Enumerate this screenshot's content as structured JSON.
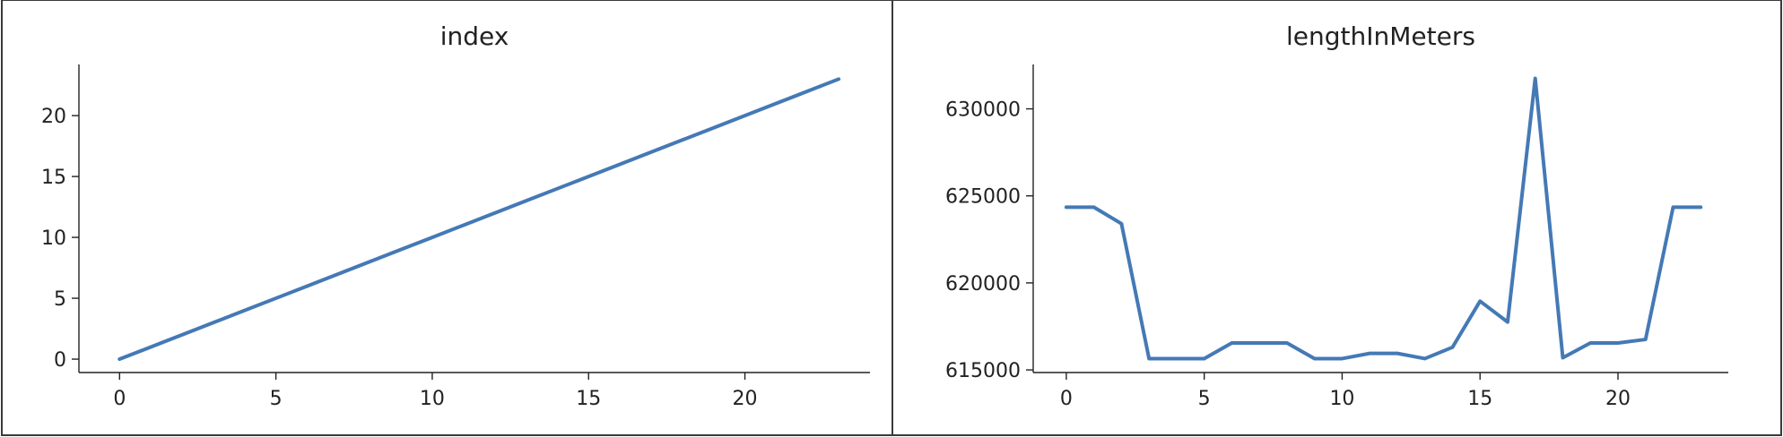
{
  "chart_data": [
    {
      "type": "line",
      "title": "index",
      "xlabel": "",
      "ylabel": "",
      "x": [
        0,
        1,
        2,
        3,
        4,
        5,
        6,
        7,
        8,
        9,
        10,
        11,
        12,
        13,
        14,
        15,
        16,
        17,
        18,
        19,
        20,
        21,
        22,
        23
      ],
      "series": [
        {
          "values": [
            0,
            1,
            2,
            3,
            4,
            5,
            6,
            7,
            8,
            9,
            10,
            11,
            12,
            13,
            14,
            15,
            16,
            17,
            18,
            19,
            20,
            21,
            22,
            23
          ],
          "color": "#4479b5"
        }
      ],
      "xlim": [
        -1.3,
        24
      ],
      "ylim": [
        -1.1,
        24.2
      ],
      "xticks": [
        0,
        5,
        10,
        15,
        20
      ],
      "yticks": [
        0,
        5,
        10,
        15,
        20
      ],
      "grid": false
    },
    {
      "type": "line",
      "title": "lengthInMeters",
      "xlabel": "",
      "ylabel": "",
      "x": [
        0,
        1,
        2,
        3,
        4,
        5,
        6,
        7,
        8,
        9,
        10,
        11,
        12,
        13,
        14,
        15,
        16,
        17,
        18,
        19,
        20,
        21,
        22,
        23
      ],
      "series": [
        {
          "values": [
            624350,
            624350,
            623400,
            615650,
            615650,
            615650,
            616550,
            616550,
            616550,
            615650,
            615650,
            615950,
            615950,
            615650,
            616300,
            618950,
            617750,
            631750,
            615700,
            616550,
            616550,
            616750,
            624350,
            624350
          ],
          "color": "#4479b5"
        }
      ],
      "xlim": [
        -1.2,
        24
      ],
      "ylim": [
        614850,
        632550
      ],
      "xticks": [
        0,
        5,
        10,
        15,
        20
      ],
      "yticks": [
        615000,
        620000,
        625000,
        630000
      ],
      "grid": false
    }
  ]
}
